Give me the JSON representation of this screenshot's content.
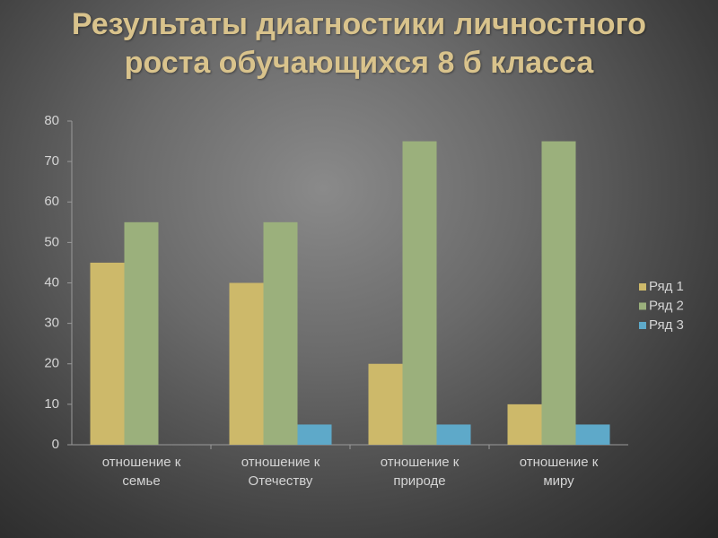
{
  "chart_data": {
    "type": "bar",
    "title": "Результаты диагностики личностного роста обучающихся 8 б класса",
    "categories": [
      "отношение к семье",
      "отношение к Отечеству",
      "отношение к природе",
      "отношение к миру"
    ],
    "series": [
      {
        "name": "Ряд 1",
        "color": "#cdb96a",
        "values": [
          45,
          40,
          20,
          10
        ]
      },
      {
        "name": "Ряд 2",
        "color": "#9bb07c",
        "values": [
          55,
          55,
          75,
          75
        ]
      },
      {
        "name": "Ряд 3",
        "color": "#5ea9c9",
        "values": [
          0,
          5,
          5,
          5
        ]
      }
    ],
    "ylim": [
      0,
      80
    ],
    "yticks": [
      0,
      10,
      20,
      30,
      40,
      50,
      60,
      70,
      80
    ],
    "grid": false,
    "legend": "right"
  }
}
